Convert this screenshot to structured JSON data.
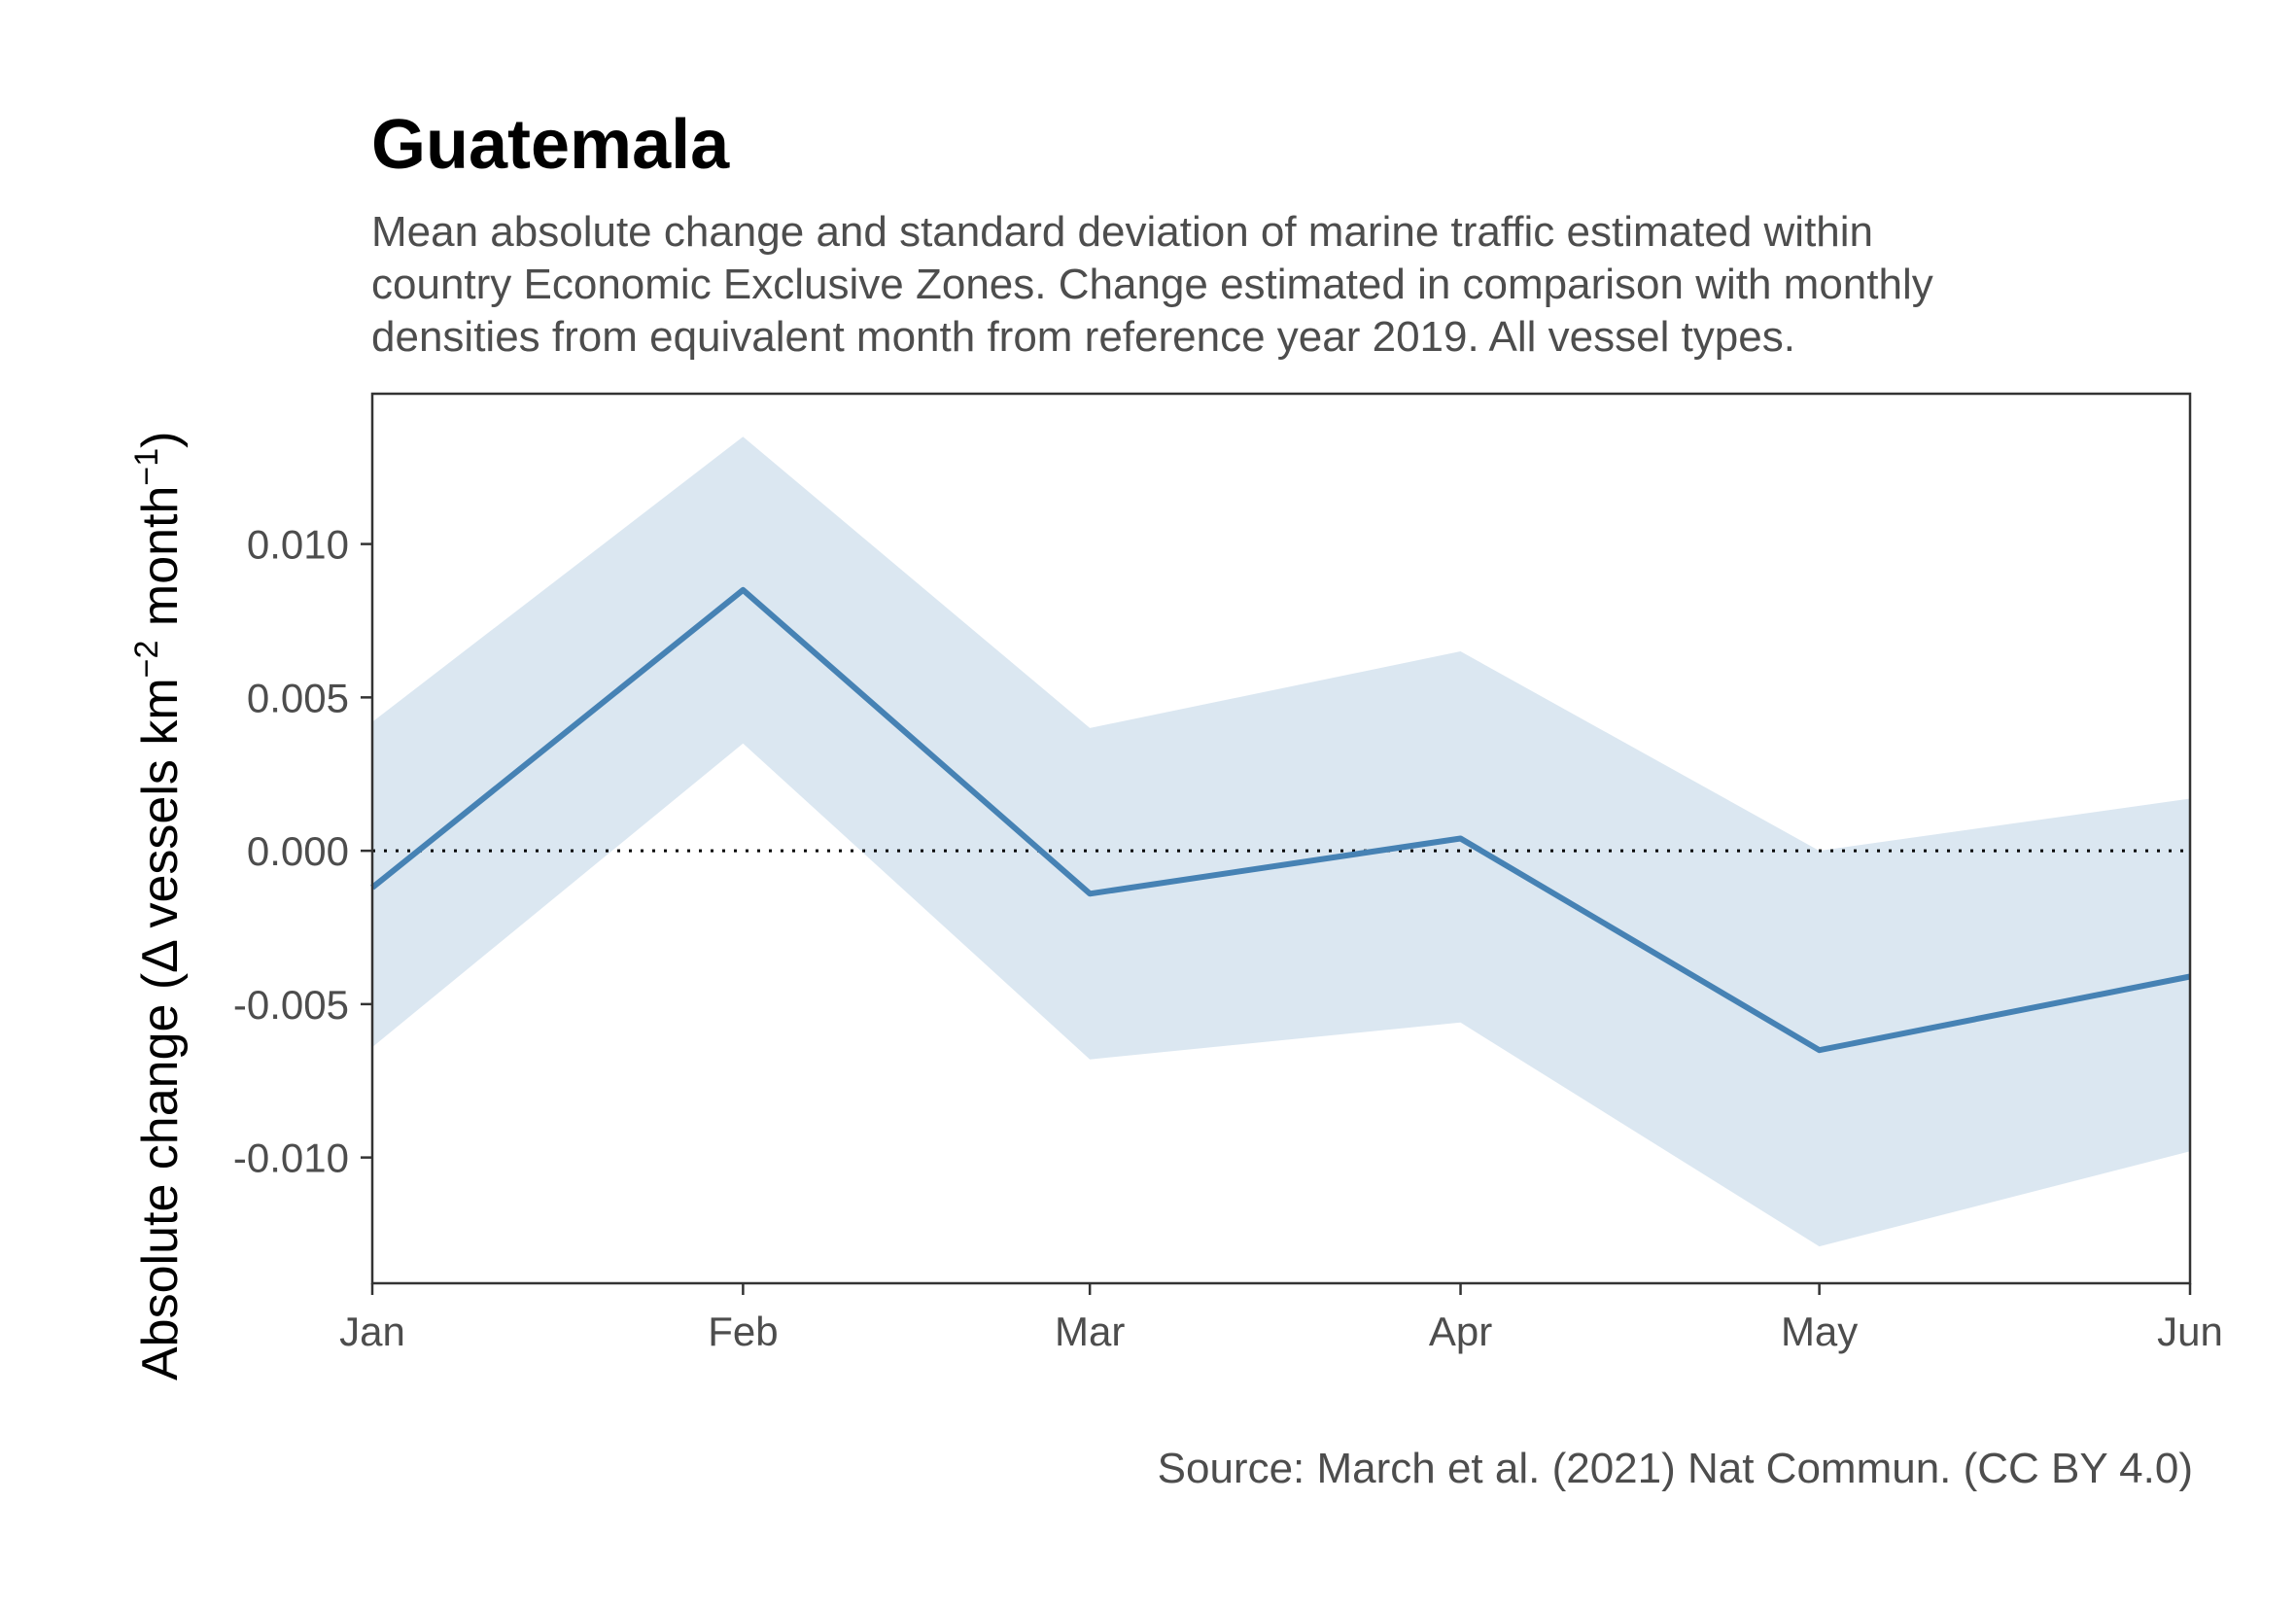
{
  "chart_data": {
    "type": "line",
    "title": "Guatemala",
    "subtitle_lines": [
      "Mean absolute change and standard deviation of marine traffic estimated within",
      "country Economic Exclusive Zones. Change estimated in comparison with monthly",
      "densities from equivalent month from reference year 2019. All vessel types."
    ],
    "caption": "Source: March et al. (2021) Nat Commun. (CC BY 4.0)",
    "ylabel": {
      "prefix": "Absolute change (",
      "delta": "Δ",
      "vessels": " vessels km",
      "exp1": "−2",
      "month": " month",
      "exp2": "−1",
      "suffix": ")"
    },
    "categories": [
      "Jan",
      "Feb",
      "Mar",
      "Apr",
      "May",
      "Jun"
    ],
    "x_days": [
      1,
      32,
      61,
      92,
      122,
      153
    ],
    "mean": [
      -0.0012,
      0.0085,
      -0.0014,
      0.0004,
      -0.0065,
      -0.0041
    ],
    "upper": [
      0.0042,
      0.0135,
      0.004,
      0.0065,
      0.0,
      0.0017
    ],
    "lower": [
      -0.0064,
      0.0035,
      -0.0068,
      -0.0056,
      -0.0129,
      -0.0098
    ],
    "reference_line": 0,
    "y_ticks": [
      0.01,
      0.005,
      0.0,
      -0.005,
      -0.01
    ],
    "y_tick_labels": [
      "0.010",
      "0.005",
      "0.000",
      "-0.005",
      "-0.010"
    ],
    "ylim": [
      -0.0141,
      0.0149
    ],
    "colors": {
      "line": "#4682b4",
      "ribbon": "#dbe7f1",
      "reference": "#000000",
      "axis": "#333333"
    }
  }
}
